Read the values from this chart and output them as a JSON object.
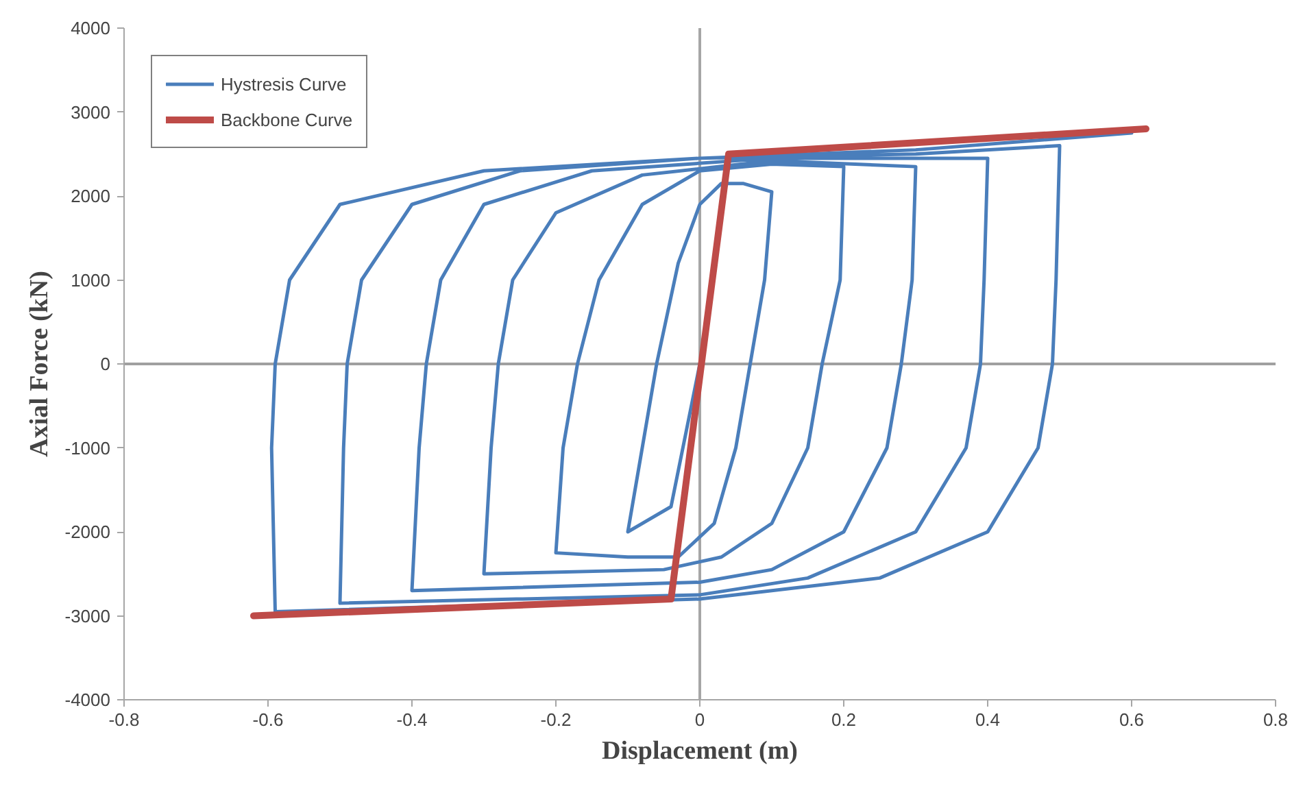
{
  "chart_data": {
    "type": "line",
    "xlabel": "Displacement (m)",
    "ylabel": "Axial Force (kN)",
    "xlim": [
      -0.8,
      0.8
    ],
    "xticks": [
      -0.8,
      -0.6,
      -0.4,
      -0.2,
      0,
      0.2,
      0.4,
      0.6,
      0.8
    ],
    "ylim": [
      -4000,
      4000
    ],
    "yticks": [
      -4000,
      -3000,
      -2000,
      -1000,
      0,
      1000,
      2000,
      3000,
      4000
    ],
    "grid": false,
    "legend": "top left",
    "marker": "none",
    "line_style": "solid",
    "ref_lines": [
      {
        "axis": "x",
        "value": 0,
        "color": "#a6a6a6"
      },
      {
        "axis": "y",
        "value": 0,
        "color": "#a0a0a0"
      }
    ],
    "series": [
      {
        "name": "Hystresis Curve",
        "color": "#4a7ebb",
        "x": [
          0,
          -0.04,
          -0.1,
          -0.09,
          -0.06,
          -0.03,
          0,
          0.03,
          0.06,
          0.1,
          0.09,
          0.07,
          0.05,
          0.02,
          -0.03,
          -0.1,
          -0.2,
          -0.19,
          -0.17,
          -0.14,
          -0.08,
          0,
          0.1,
          0.2,
          0.195,
          0.17,
          0.15,
          0.1,
          0.03,
          -0.05,
          -0.3,
          -0.29,
          -0.28,
          -0.26,
          -0.2,
          -0.08,
          0.1,
          0.3,
          0.295,
          0.28,
          0.26,
          0.2,
          0.1,
          0,
          -0.4,
          -0.39,
          -0.38,
          -0.36,
          -0.3,
          -0.15,
          0.1,
          0.4,
          0.395,
          0.39,
          0.37,
          0.3,
          0.15,
          0,
          -0.5,
          -0.495,
          -0.49,
          -0.47,
          -0.4,
          -0.25,
          0,
          0.3,
          0.5,
          0.495,
          0.49,
          0.47,
          0.4,
          0.25,
          0,
          -0.59,
          -0.595,
          -0.59,
          -0.57,
          -0.5,
          -0.3,
          0,
          0.3,
          0.6
        ],
        "values": [
          0,
          -1700,
          -2000,
          -1500,
          0,
          1200,
          1900,
          2150,
          2150,
          2050,
          1000,
          0,
          -1000,
          -1900,
          -2300,
          -2300,
          -2250,
          -1000,
          0,
          1000,
          1900,
          2300,
          2380,
          2350,
          1000,
          0,
          -1000,
          -1900,
          -2300,
          -2450,
          -2500,
          -1000,
          0,
          1000,
          1800,
          2250,
          2420,
          2350,
          1000,
          0,
          -1000,
          -2000,
          -2450,
          -2600,
          -2700,
          -1000,
          0,
          1000,
          1900,
          2300,
          2450,
          2450,
          1000,
          0,
          -1000,
          -2000,
          -2550,
          -2750,
          -2850,
          -1000,
          0,
          1000,
          1900,
          2300,
          2450,
          2500,
          2600,
          1000,
          0,
          -1000,
          -2000,
          -2550,
          -2800,
          -2950,
          -1000,
          0,
          1000,
          1900,
          2300,
          2450,
          2550,
          2750
        ]
      },
      {
        "name": "Backbone Curve",
        "color": "#be4b48",
        "x": [
          -0.62,
          -0.04,
          0.04,
          0.62
        ],
        "values": [
          -3000,
          -2800,
          2500,
          2800
        ]
      }
    ]
  }
}
